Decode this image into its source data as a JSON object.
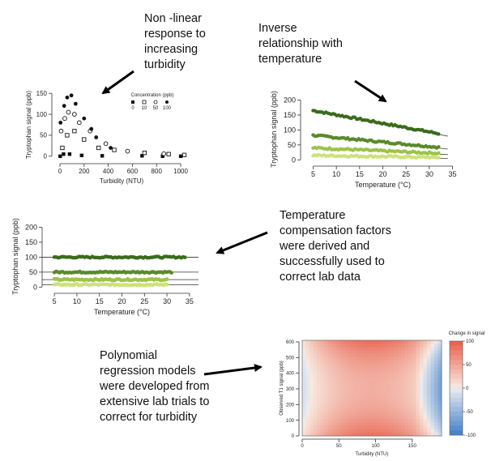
{
  "annotations": [
    {
      "id": "n1",
      "text": "Non -linear\nresponse to\nincreasing\nturbidity"
    },
    {
      "id": "n2",
      "text": "Inverse\nrelationship with\ntemperature"
    },
    {
      "id": "n3",
      "text": "Temperature\ncompensation factors\nwere derived and\nsuccessfully used to\ncorrect lab data"
    },
    {
      "id": "n4",
      "text": "Polynomial\nregression models\nwere developed from\nextensive lab trials to\ncorrect for turbidity"
    }
  ],
  "chart_data": [
    {
      "id": "turbidity",
      "type": "scatter",
      "xlabel": "Turbidity (NTU)",
      "ylabel": "Tryptophan signal (ppb)",
      "xticks": [
        0,
        200,
        400,
        600,
        800,
        1000
      ],
      "yticks": [
        0,
        50,
        100,
        150
      ],
      "xlim": [
        -40,
        1060
      ],
      "ylim": [
        -10,
        160
      ],
      "legend_title": "Concentration (ppb)",
      "legend": [
        "0",
        "10",
        "50",
        "100"
      ],
      "series": [
        {
          "name": "0",
          "marker": "filled-square",
          "points": [
            [
              2,
              0
            ],
            [
              30,
              5
            ],
            [
              80,
              5
            ],
            [
              180,
              2
            ],
            [
              350,
              1
            ],
            [
              680,
              1
            ],
            [
              850,
              0
            ],
            [
              1000,
              0
            ]
          ]
        },
        {
          "name": "10",
          "marker": "open-square",
          "points": [
            [
              20,
              20
            ],
            [
              60,
              50
            ],
            [
              120,
              60
            ],
            [
              200,
              40
            ],
            [
              320,
              20
            ],
            [
              450,
              15
            ],
            [
              700,
              8
            ],
            [
              900,
              5
            ],
            [
              1030,
              3
            ]
          ]
        },
        {
          "name": "50",
          "marker": "open-circle",
          "points": [
            [
              10,
              60
            ],
            [
              40,
              90
            ],
            [
              70,
              105
            ],
            [
              120,
              100
            ],
            [
              160,
              80
            ],
            [
              250,
              60
            ],
            [
              380,
              30
            ],
            [
              560,
              12
            ],
            [
              860,
              6
            ]
          ]
        },
        {
          "name": "100",
          "marker": "filled-circle",
          "points": [
            [
              5,
              80
            ],
            [
              35,
              120
            ],
            [
              60,
              140
            ],
            [
              95,
              145
            ],
            [
              130,
              125
            ],
            [
              200,
              90
            ],
            [
              260,
              65
            ],
            [
              300,
              45
            ],
            [
              420,
              20
            ]
          ]
        }
      ]
    },
    {
      "id": "temperature",
      "type": "scatter",
      "xlabel": "Temperature (°C)",
      "ylabel": "Tryptophan signal (ppb)",
      "xticks": [
        5,
        10,
        15,
        20,
        25,
        30,
        35
      ],
      "yticks": [
        0,
        50,
        100,
        150,
        200
      ],
      "xlim": [
        3,
        37
      ],
      "ylim": [
        -10,
        215
      ],
      "series": [
        {
          "color": "#3b6b1c",
          "start": [
            5,
            165
          ],
          "end": [
            32,
            88
          ]
        },
        {
          "color": "#5a8a2a",
          "start": [
            5,
            82
          ],
          "end": [
            32,
            42
          ]
        },
        {
          "color": "#9cc24a",
          "start": [
            5,
            40
          ],
          "end": [
            32,
            22
          ]
        },
        {
          "color": "#cde27a",
          "start": [
            5,
            15
          ],
          "end": [
            32,
            8
          ]
        }
      ]
    },
    {
      "id": "compensated",
      "type": "scatter",
      "xlabel": "Temperature (°C)",
      "ylabel": "Tryptophan signal (ppb)",
      "xticks": [
        5,
        10,
        15,
        20,
        25,
        30,
        35
      ],
      "yticks": [
        0,
        50,
        100,
        150,
        200
      ],
      "xlim": [
        3,
        37
      ],
      "ylim": [
        -10,
        215
      ],
      "series": [
        {
          "color": "#3b6b1c",
          "y": 100,
          "x": [
            5,
            34
          ]
        },
        {
          "color": "#5a8a2a",
          "y": 50,
          "x": [
            5,
            31
          ]
        },
        {
          "color": "#9cc24a",
          "y": 25,
          "x": [
            5,
            30
          ]
        },
        {
          "color": "#cde27a",
          "y": 8,
          "x": [
            5,
            30
          ]
        }
      ],
      "reference_lines": [
        100,
        50,
        25,
        8
      ]
    },
    {
      "id": "regression",
      "type": "heatmap",
      "xlabel": "Turbidity (NTU)",
      "ylabel": "Observed T1 signal (ppb)",
      "xticks": [
        0,
        50,
        100,
        150
      ],
      "yticks": [
        0,
        100,
        200,
        300,
        400,
        500,
        600
      ],
      "xlim": [
        0,
        190
      ],
      "ylim": [
        0,
        610
      ],
      "colorbar_title": "Change in signal",
      "colorbar_ticks": [
        100,
        50,
        0,
        -50,
        -100
      ]
    }
  ]
}
